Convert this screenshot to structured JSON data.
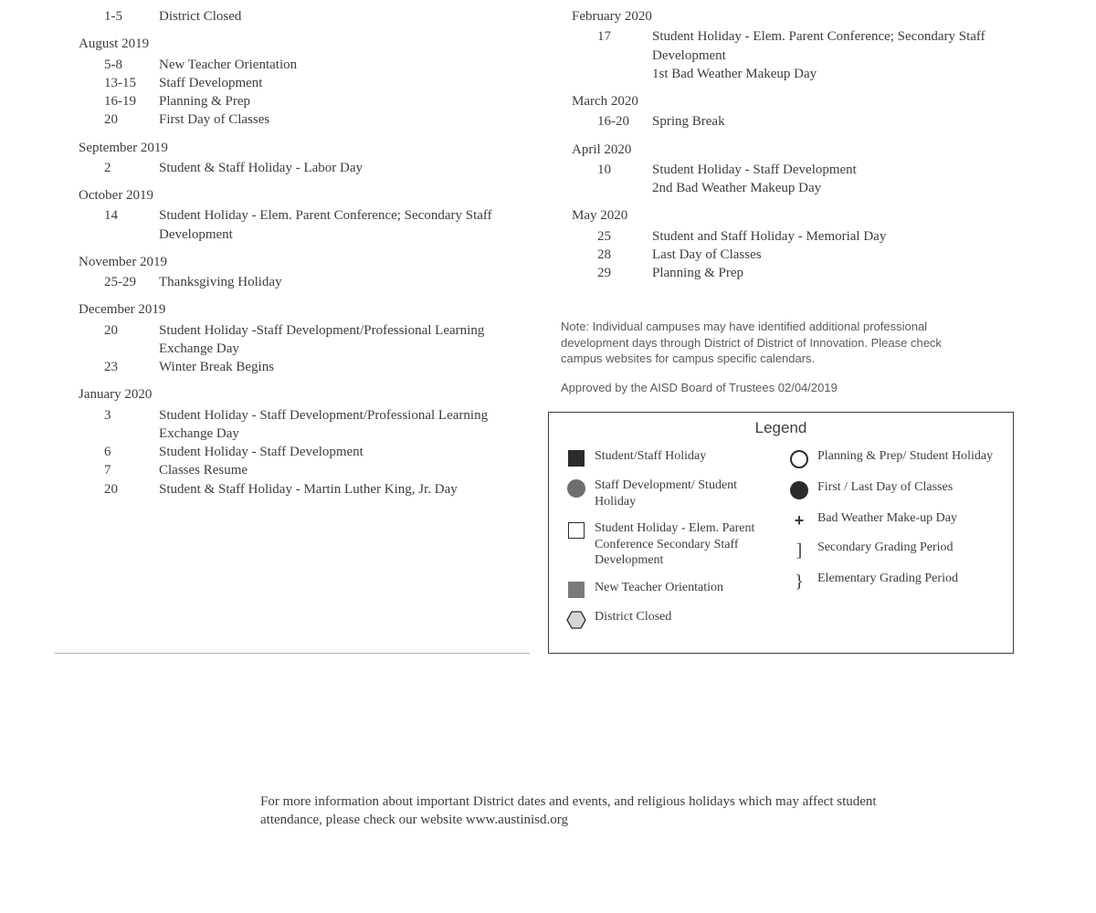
{
  "left": {
    "top_event": {
      "date": "1-5",
      "desc": "District Closed"
    },
    "months": [
      {
        "title": "August 2019",
        "events": [
          {
            "date": "5-8",
            "desc": "New Teacher Orientation"
          },
          {
            "date": "13-15",
            "desc": "Staff Development"
          },
          {
            "date": "16-19",
            "desc": "Planning & Prep"
          },
          {
            "date": "20",
            "desc": "First Day of Classes"
          }
        ]
      },
      {
        "title": "September 2019",
        "events": [
          {
            "date": "2",
            "desc": "Student & Staff Holiday - Labor Day"
          }
        ]
      },
      {
        "title": "October 2019",
        "events": [
          {
            "date": "14",
            "desc": "Student Holiday - Elem. Parent Conference; Secondary Staff Development"
          }
        ]
      },
      {
        "title": "November 2019",
        "events": [
          {
            "date": "25-29",
            "desc": "Thanksgiving Holiday"
          }
        ]
      },
      {
        "title": "December 2019",
        "events": [
          {
            "date": "20",
            "desc": "Student Holiday -Staff Development/Professional Learning Exchange Day"
          },
          {
            "date": "23",
            "desc": "Winter Break Begins"
          }
        ]
      },
      {
        "title": "January 2020",
        "events": [
          {
            "date": "3",
            "desc": "Student Holiday - Staff Development/Professional Learning Exchange Day"
          },
          {
            "date": "6",
            "desc": "Student Holiday - Staff Development"
          },
          {
            "date": "7",
            "desc": "Classes Resume"
          },
          {
            "date": "20",
            "desc": "Student & Staff Holiday - Martin Luther King, Jr. Day"
          }
        ]
      }
    ]
  },
  "right": {
    "months": [
      {
        "title": "February 2020",
        "events": [
          {
            "date": "17",
            "desc": "Student Holiday - Elem. Parent Conference; Secondary Staff Development"
          },
          {
            "date": "",
            "desc": "1st Bad Weather Makeup Day"
          }
        ]
      },
      {
        "title": "March 2020",
        "events": [
          {
            "date": "16-20",
            "desc": "Spring Break"
          }
        ]
      },
      {
        "title": "April 2020",
        "events": [
          {
            "date": "10",
            "desc": "Student Holiday - Staff Development"
          },
          {
            "date": "",
            "desc": "2nd Bad Weather Makeup Day"
          }
        ]
      },
      {
        "title": "May 2020",
        "events": [
          {
            "date": "25",
            "desc": "Student and Staff Holiday - Memorial Day"
          },
          {
            "date": "28",
            "desc": "Last Day of Classes"
          },
          {
            "date": "29",
            "desc": "Planning & Prep"
          }
        ]
      }
    ],
    "note": "Note: Individual campuses may have identified additional professional development days through District of District of Innovation. Please check campus websites for campus specific calendars.",
    "approved": "Approved by the AISD Board of Trustees 02/04/2019"
  },
  "legend": {
    "title": "Legend",
    "left": [
      {
        "sym": "black-sq",
        "label": "Student/Staff Holiday"
      },
      {
        "sym": "gray-circ",
        "label": "Staff Development/ Student Holiday"
      },
      {
        "sym": "open-sq",
        "label": "Student Holiday - Elem. Parent Conference Secondary Staff Development"
      },
      {
        "sym": "gray-sq",
        "label": "New Teacher Orientation"
      },
      {
        "sym": "hexagon",
        "label": "District Closed"
      }
    ],
    "right": [
      {
        "sym": "open-circ",
        "label": "Planning & Prep/ Student Holiday"
      },
      {
        "sym": "black-circ",
        "label": "First / Last Day of Classes"
      },
      {
        "sym": "plus",
        "label": "Bad Weather Make-up Day"
      },
      {
        "sym": "bracket",
        "label": "Secondary Grading Period"
      },
      {
        "sym": "curly",
        "label": "Elementary Grading Period"
      }
    ]
  },
  "footer": "For more information about important District dates and events, and religious holidays which may affect student attendance, please check our website www.austinisd.org"
}
